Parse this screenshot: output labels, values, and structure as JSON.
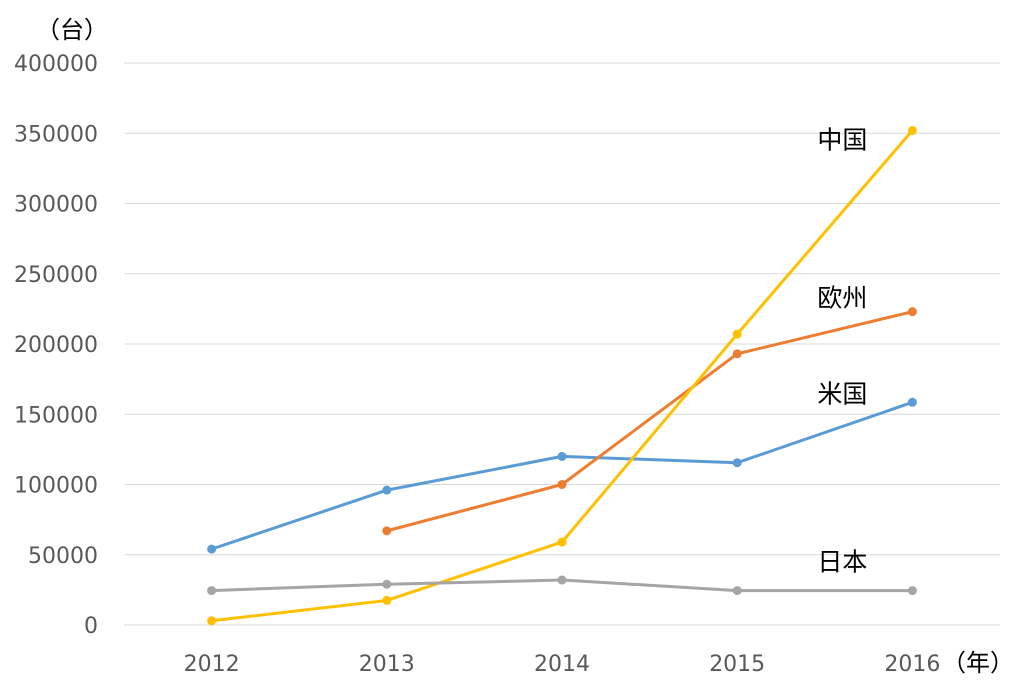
{
  "chart_data": {
    "type": "line",
    "title": "",
    "y_unit_label": "（台）",
    "x_unit_label": "（年）",
    "categories": [
      "2012",
      "2013",
      "2014",
      "2015",
      "2016"
    ],
    "ylim": [
      0,
      400000
    ],
    "yticks": [
      0,
      50000,
      100000,
      150000,
      200000,
      250000,
      300000,
      350000,
      400000
    ],
    "yticks_text": [
      "0",
      "50000",
      "100000",
      "150000",
      "200000",
      "250000",
      "300000",
      "350000",
      "400000"
    ],
    "grid": true,
    "legend": "none",
    "series": [
      {
        "name": "米国",
        "color": "#5b9bd5",
        "values": [
          54000,
          96000,
          120000,
          115500,
          158500
        ]
      },
      {
        "name": "欧州",
        "color": "#ed7d31",
        "values": [
          null,
          67000,
          100000,
          193000,
          223000
        ]
      },
      {
        "name": "中国",
        "color": "#ffc000",
        "values": [
          3000,
          17500,
          59000,
          207000,
          352000
        ]
      },
      {
        "name": "日本",
        "color": "#a5a5a5",
        "values": [
          24500,
          29000,
          32000,
          24500,
          24500
        ]
      }
    ]
  }
}
